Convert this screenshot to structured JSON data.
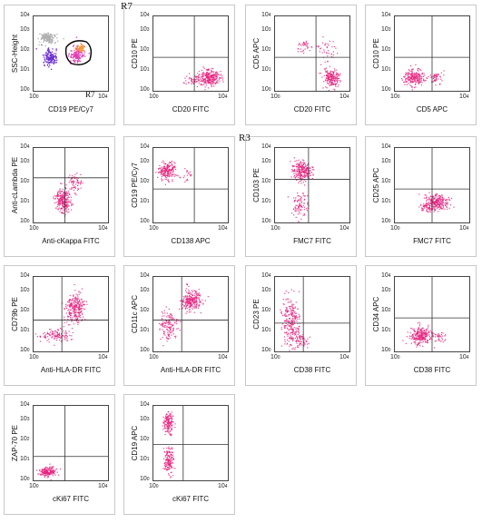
{
  "figure": {
    "panel_tags": [
      {
        "text": "R7",
        "panel": 1
      },
      {
        "text": "R3",
        "panel": 6
      }
    ],
    "axis_ticks": [
      "10",
      "0",
      "10",
      "1",
      "10",
      "2",
      "10",
      "3",
      "10",
      "4"
    ],
    "panels": [
      {
        "ylabel": "SSC-Height",
        "xlabel": "CD19 PE/Cy7",
        "gate_label": "R7",
        "type": "gate",
        "colors": [
          "#b0b0b0",
          "#6a2fd1",
          "#e23ab5",
          "#f39a2e"
        ]
      },
      {
        "ylabel": "CD10 PE",
        "xlabel": "CD20 FITC",
        "type": "quad",
        "color": "#e6237f"
      },
      {
        "ylabel": "CD5 APC",
        "xlabel": "CD20 FITC",
        "type": "quad",
        "color": "#e6237f"
      },
      {
        "ylabel": "CD10 PE",
        "xlabel": "CD5 APC",
        "type": "quad",
        "color": "#e6237f"
      },
      {
        "ylabel": "Anti-cLambda PE",
        "xlabel": "Anti-cKappa FITC",
        "type": "quad",
        "color": "#e6237f"
      },
      {
        "ylabel": "CD19 PE/Cy7",
        "xlabel": "CD138 APC",
        "type": "quad",
        "color": "#e6237f"
      },
      {
        "ylabel": "CD103 PE",
        "xlabel": "FMC7 FITC",
        "type": "quad",
        "color": "#e6237f"
      },
      {
        "ylabel": "CD25 APC",
        "xlabel": "FMC7 FITC",
        "type": "quad",
        "color": "#e6237f"
      },
      {
        "ylabel": "CD79b PE",
        "xlabel": "Anti-HLA-DR FITC",
        "type": "quad",
        "color": "#e6237f"
      },
      {
        "ylabel": "CD11c APC",
        "xlabel": "Anti-HLA-DR FITC",
        "type": "quad",
        "color": "#e6237f"
      },
      {
        "ylabel": "CD23 PE",
        "xlabel": "CD38 FITC",
        "type": "quad",
        "color": "#e6237f"
      },
      {
        "ylabel": "CD34 APC",
        "xlabel": "CD38 FITC",
        "type": "quad",
        "color": "#e6237f"
      },
      {
        "ylabel": "ZAP-70 PE",
        "xlabel": "cKi67 FITC",
        "type": "quad",
        "color": "#e6237f"
      },
      {
        "ylabel": "CD19 APC",
        "xlabel": "cKi67 FITC",
        "type": "quad",
        "color": "#e6237f"
      }
    ]
  }
}
